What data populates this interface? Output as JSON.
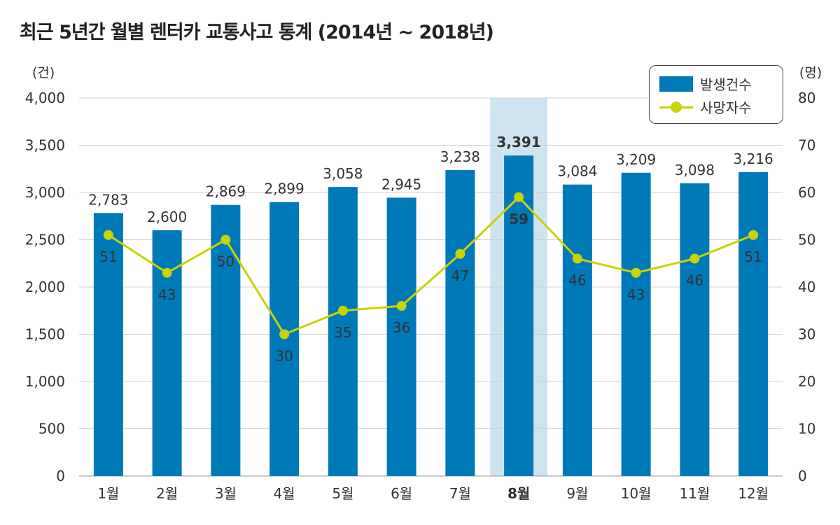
{
  "chart_data": {
    "type": "bar+line",
    "title": "최근 5년간 월별 렌터카 교통사고 통계 (2014년 ~ 2018년)",
    "categories": [
      "1월",
      "2월",
      "3월",
      "4월",
      "5월",
      "6월",
      "7월",
      "8월",
      "9월",
      "10월",
      "11월",
      "12월"
    ],
    "highlight_category": "8월",
    "y_left": {
      "unit": "(건)",
      "ylim": [
        0,
        4000
      ],
      "ticks": [
        "0",
        "500",
        "1,000",
        "1,500",
        "2,000",
        "2,500",
        "3,000",
        "3,500",
        "4,000"
      ]
    },
    "y_right": {
      "unit": "(명)",
      "ylim": [
        0,
        80
      ],
      "ticks": [
        "0",
        "10",
        "20",
        "30",
        "40",
        "50",
        "60",
        "70",
        "80"
      ]
    },
    "grid": true,
    "legend_position": "top-right",
    "series": [
      {
        "name": "발생건수",
        "type": "bar",
        "axis": "left",
        "color": "#0079b9",
        "values": [
          2783,
          2600,
          2869,
          2899,
          3058,
          2945,
          3238,
          3391,
          3084,
          3209,
          3098,
          3216
        ],
        "labels": [
          "2,783",
          "2,600",
          "2,869",
          "2,899",
          "3,058",
          "2,945",
          "3,238",
          "3,391",
          "3,084",
          "3,209",
          "3,098",
          "3,216"
        ]
      },
      {
        "name": "사망자수",
        "type": "line",
        "axis": "right",
        "color": "#c9d300",
        "values": [
          51,
          43,
          50,
          30,
          35,
          36,
          47,
          59,
          46,
          43,
          46,
          51
        ],
        "labels": [
          "51",
          "43",
          "50",
          "30",
          "35",
          "36",
          "47",
          "59",
          "46",
          "43",
          "46",
          "51"
        ]
      }
    ],
    "highlight_color": "#cde4f0"
  }
}
